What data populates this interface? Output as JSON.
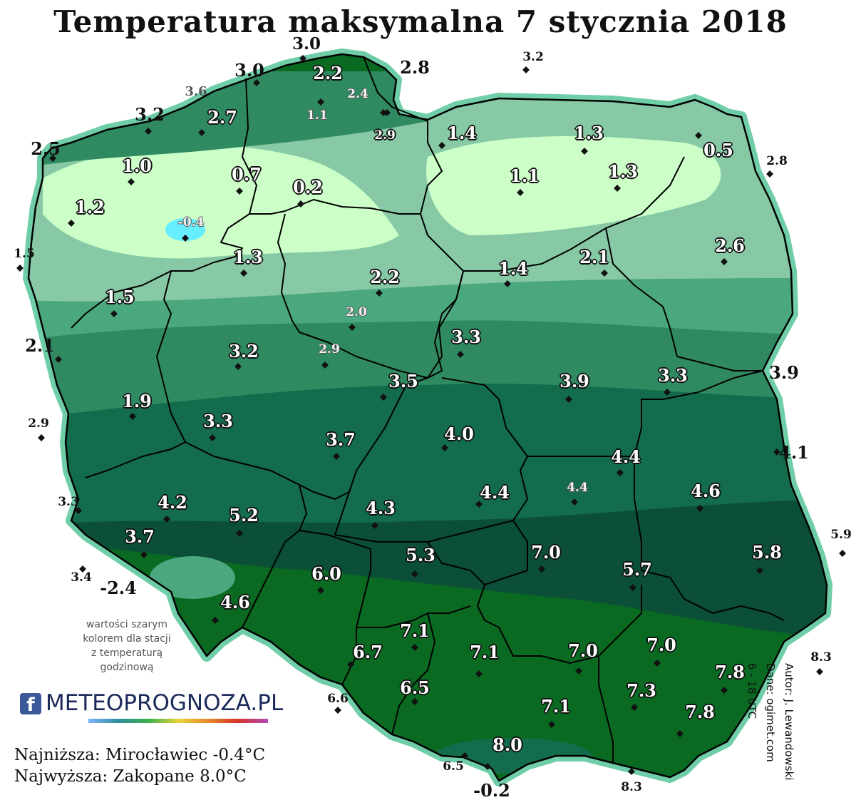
{
  "title": "Temperatura maksymalna 7 stycznia 2018",
  "colors": {
    "background": "#ffffff",
    "coastal_band": "#6fcea8",
    "zone_lightest": "#ccffc8",
    "zone_light": "#86c9a4",
    "zone_mid_light": "#4ba77e",
    "zone_mid": "#2f8a62",
    "zone_dark": "#136c4c",
    "zone_darkest": "#0b4f38",
    "zone_south": "#0a6a22",
    "below_zero": "#66eeff",
    "border": "#000000"
  },
  "stations": [
    {
      "v": "3.0",
      "s": "out",
      "f": 21
    },
    {
      "v": "3.0",
      "s": "out",
      "f": 22
    },
    {
      "v": "2.2",
      "s": "in",
      "f": 22
    },
    {
      "v": "2.8",
      "s": "out",
      "f": 22
    },
    {
      "v": "3.2",
      "s": "out",
      "f": 15
    },
    {
      "v": "3.6",
      "s": "greyout",
      "f": 16
    },
    {
      "v": "2.4",
      "s": "grey",
      "f": 15
    },
    {
      "v": "1.1",
      "s": "grey",
      "f": 15
    },
    {
      "v": "3.2",
      "s": "out",
      "f": 22
    },
    {
      "v": "2.7",
      "s": "in",
      "f": 22
    },
    {
      "v": "2.9",
      "s": "in",
      "f": 15
    },
    {
      "v": "1.4",
      "s": "in",
      "f": 22
    },
    {
      "v": "1.3",
      "s": "in",
      "f": 22
    },
    {
      "v": "2.5",
      "s": "out",
      "f": 22
    },
    {
      "v": "0.5",
      "s": "in",
      "f": 22
    },
    {
      "v": "2.8",
      "s": "out",
      "f": 15
    },
    {
      "v": "1.0",
      "s": "in",
      "f": 22
    },
    {
      "v": "0.7",
      "s": "in",
      "f": 22
    },
    {
      "v": "0.2",
      "s": "in",
      "f": 22
    },
    {
      "v": "1.1",
      "s": "in",
      "f": 22
    },
    {
      "v": "1.3",
      "s": "in",
      "f": 22
    },
    {
      "v": "1.2",
      "s": "in",
      "f": 22
    },
    {
      "v": "-0.4",
      "s": "grey",
      "f": 15
    },
    {
      "v": "1.5",
      "s": "out",
      "f": 15
    },
    {
      "v": "1.3",
      "s": "in",
      "f": 22
    },
    {
      "v": "2.6",
      "s": "in",
      "f": 22
    },
    {
      "v": "1.4",
      "s": "in",
      "f": 22
    },
    {
      "v": "2.1",
      "s": "in",
      "f": 22
    },
    {
      "v": "2.2",
      "s": "in",
      "f": 22
    },
    {
      "v": "1.5",
      "s": "in",
      "f": 22
    },
    {
      "v": "2.0",
      "s": "grey",
      "f": 15
    },
    {
      "v": "2.1",
      "s": "out",
      "f": 22
    },
    {
      "v": "3.3",
      "s": "in",
      "f": 22
    },
    {
      "v": "3.2",
      "s": "in",
      "f": 22
    },
    {
      "v": "2.9",
      "s": "grey",
      "f": 15
    },
    {
      "v": "3.5",
      "s": "in",
      "f": 22
    },
    {
      "v": "3.9",
      "s": "in",
      "f": 22
    },
    {
      "v": "3.3",
      "s": "in",
      "f": 22
    },
    {
      "v": "3.9",
      "s": "out",
      "f": 22
    },
    {
      "v": "1.9",
      "s": "in",
      "f": 22
    },
    {
      "v": "3.3",
      "s": "in",
      "f": 22
    },
    {
      "v": "2.9",
      "s": "out",
      "f": 15
    },
    {
      "v": "3.7",
      "s": "in",
      "f": 22
    },
    {
      "v": "4.0",
      "s": "in",
      "f": 22
    },
    {
      "v": "4.1",
      "s": "out",
      "f": 22
    },
    {
      "v": "4.4",
      "s": "in",
      "f": 22
    },
    {
      "v": "3.3",
      "s": "out",
      "f": 15
    },
    {
      "v": "4.2",
      "s": "in",
      "f": 22
    },
    {
      "v": "4.4",
      "s": "grey",
      "f": 15
    },
    {
      "v": "4.4",
      "s": "in",
      "f": 22
    },
    {
      "v": "4.6",
      "s": "in",
      "f": 22
    },
    {
      "v": "4.3",
      "s": "in",
      "f": 22
    },
    {
      "v": "5.2",
      "s": "in",
      "f": 22
    },
    {
      "v": "3.7",
      "s": "in",
      "f": 22
    },
    {
      "v": "5.9",
      "s": "out",
      "f": 15
    },
    {
      "v": "5.3",
      "s": "in",
      "f": 22
    },
    {
      "v": "7.0",
      "s": "in",
      "f": 22
    },
    {
      "v": "5.8",
      "s": "in",
      "f": 22
    },
    {
      "v": "3.4",
      "s": "out",
      "f": 15
    },
    {
      "v": "-2.4",
      "s": "out",
      "f": 22
    },
    {
      "v": "6.0",
      "s": "in",
      "f": 22
    },
    {
      "v": "5.7",
      "s": "in",
      "f": 22
    },
    {
      "v": "4.6",
      "s": "in",
      "f": 22
    },
    {
      "v": "7.1",
      "s": "in",
      "f": 22
    },
    {
      "v": "6.7",
      "s": "in",
      "f": 22
    },
    {
      "v": "7.1",
      "s": "in",
      "f": 22
    },
    {
      "v": "7.0",
      "s": "in",
      "f": 22
    },
    {
      "v": "7.0",
      "s": "in",
      "f": 22
    },
    {
      "v": "8.3",
      "s": "out",
      "f": 15
    },
    {
      "v": "7.8",
      "s": "in",
      "f": 22
    },
    {
      "v": "6.5",
      "s": "in",
      "f": 22
    },
    {
      "v": "6.6",
      "s": "out",
      "f": 15
    },
    {
      "v": "7.3",
      "s": "in",
      "f": 22
    },
    {
      "v": "7.1",
      "s": "in",
      "f": 22
    },
    {
      "v": "7.8",
      "s": "in",
      "f": 22
    },
    {
      "v": "8.0",
      "s": "in",
      "f": 22
    },
    {
      "v": "6.5",
      "s": "out",
      "f": 15
    },
    {
      "v": "8.3",
      "s": "out",
      "f": 15
    },
    {
      "v": "-0.2",
      "s": "out",
      "f": 22
    }
  ],
  "grey_note": [
    "wartości szarym",
    "kolorem dla stacji",
    "z temperaturą",
    "godzinową"
  ],
  "logo": {
    "icon": "f",
    "text": "METEOPROGNOZA.PL"
  },
  "extremes": {
    "lowest": "Najniższa: Mirocławiec -0.4°C",
    "highest": "Najwyższa: Zakopane 8.0°C"
  },
  "credits": {
    "author": "Autor: J. Lewandowski",
    "source": "Dane: ogimet.com",
    "hours": "6 - 18 UTC"
  }
}
